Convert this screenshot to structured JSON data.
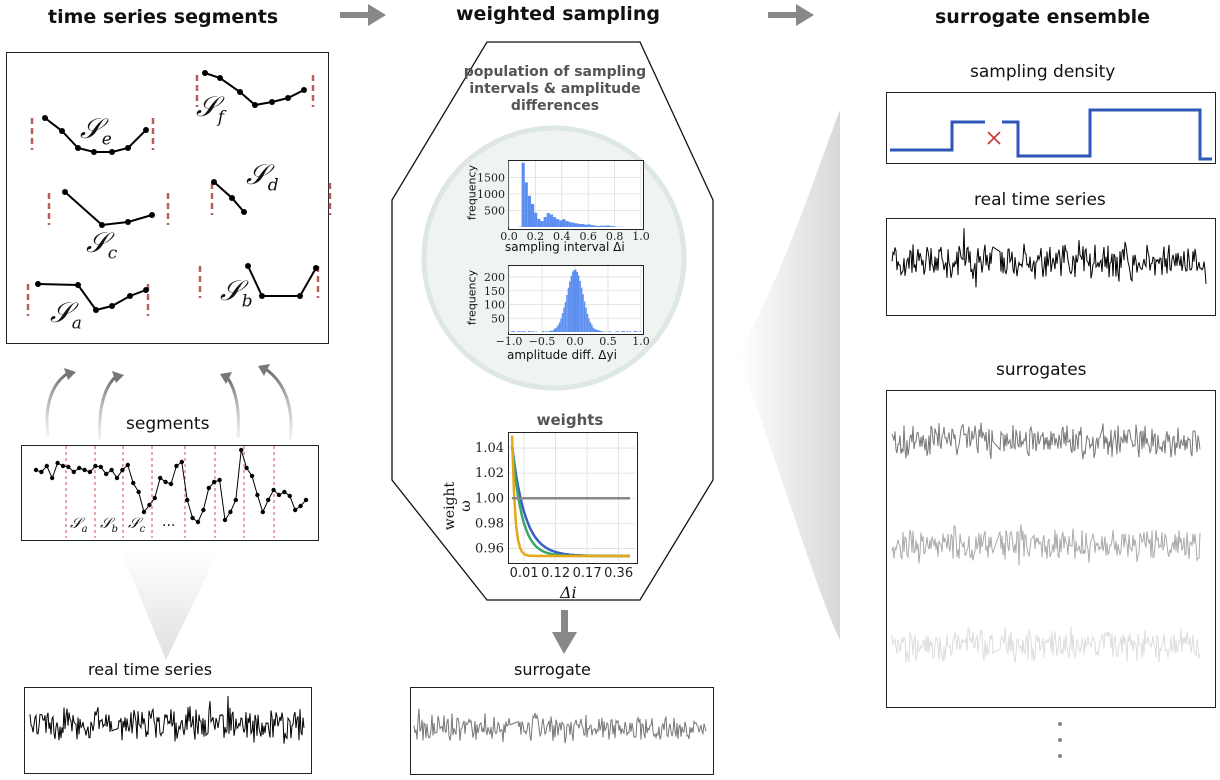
{
  "headers": {
    "left": "time series segments",
    "middle": "weighted sampling",
    "right": "surrogate ensemble"
  },
  "left": {
    "segment_labels": [
      "Se",
      "Sf",
      "Sd",
      "Sc",
      "Sb",
      "Sa"
    ],
    "segments_label": "segments",
    "inline_labels": [
      "Sa",
      "Sb",
      "Sc",
      "..."
    ],
    "real_series_label": "real time series"
  },
  "middle": {
    "population_title": "population of sampling intervals & amplitude differences",
    "hist1": {
      "ylabel": "frequency",
      "yticks": [
        "1500",
        "1000",
        "500"
      ],
      "xticks": [
        "0.0",
        "0.2",
        "0.4",
        "0.6",
        "0.8",
        "1.0"
      ],
      "xlabel": "sampling interval Δi"
    },
    "hist2": {
      "ylabel": "frequency",
      "yticks": [
        "200",
        "150",
        "100",
        "50"
      ],
      "xticks": [
        "−1.0",
        "−0.5",
        "0.0",
        "0.5",
        "1.0"
      ],
      "xlabel": "amplitude diff. Δyi"
    },
    "weights_title": "weights",
    "weights_plot": {
      "ylabel": "weight ω",
      "yticks": [
        "1.04",
        "1.02",
        "1.00",
        "0.98",
        "0.96"
      ],
      "xticks": [
        "0.01",
        "0.12",
        "0.17",
        "0.36"
      ],
      "xlabel": "Δi",
      "colors": [
        "#3a5fc8",
        "#3aa86a",
        "#e6a817",
        "#888888"
      ]
    },
    "surrogate_label": "surrogate"
  },
  "right": {
    "density_label": "sampling density",
    "real_series_label": "real time series",
    "surrogates_label": "surrogates",
    "density_color": "#2f56b8",
    "gap_marker_color": "#cc3333"
  },
  "colors": {
    "arrow": "#888888",
    "dash": "#b5605a",
    "hist": "#5b8ef0"
  }
}
